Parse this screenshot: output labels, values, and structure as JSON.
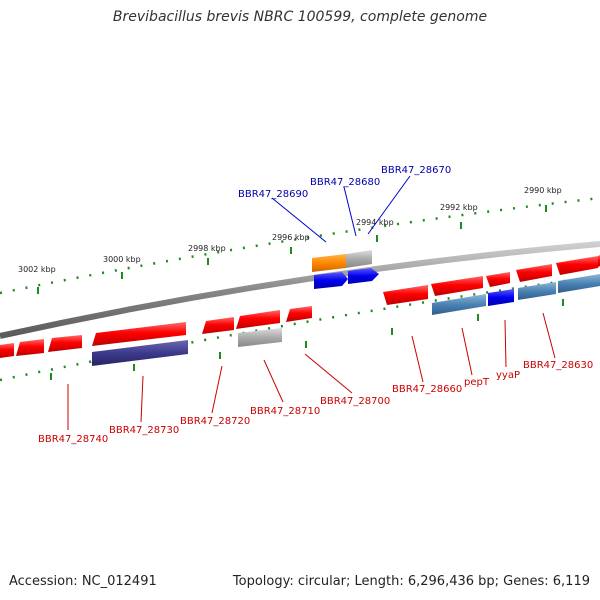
{
  "title": "Brevibacillus brevis NBRC 100599, complete genome",
  "footer": {
    "accession": "Accession: NC_012491",
    "topology": "Topology: circular; Length: 6,296,436 bp; Genes: 6,119"
  },
  "scale_labels": [
    "3002 kbp",
    "3000 kbp",
    "2998 kbp",
    "2996 kbp",
    "2994 kbp",
    "2992 kbp",
    "2990 kbp"
  ],
  "forward_gene_labels": [
    "BBR47_28690",
    "BBR47_28680",
    "BBR47_28670"
  ],
  "reverse_gene_labels": [
    "BBR47_28740",
    "BBR47_28730",
    "BBR47_28720",
    "BBR47_28710",
    "BBR47_28700",
    "BBR47_28660",
    "pepT",
    "yyaP",
    "BBR47_28630"
  ],
  "colors": {
    "cds": "#ff0000",
    "trna_like": "#ff8800",
    "forward_alt": "#0000ee",
    "reverse_alt_dark": "#3c3a8c",
    "reverse_alt_steel": "#4a82b4",
    "misc": "#aaaaaa",
    "tick": "#1f8a1f",
    "backbone": "#888888"
  }
}
